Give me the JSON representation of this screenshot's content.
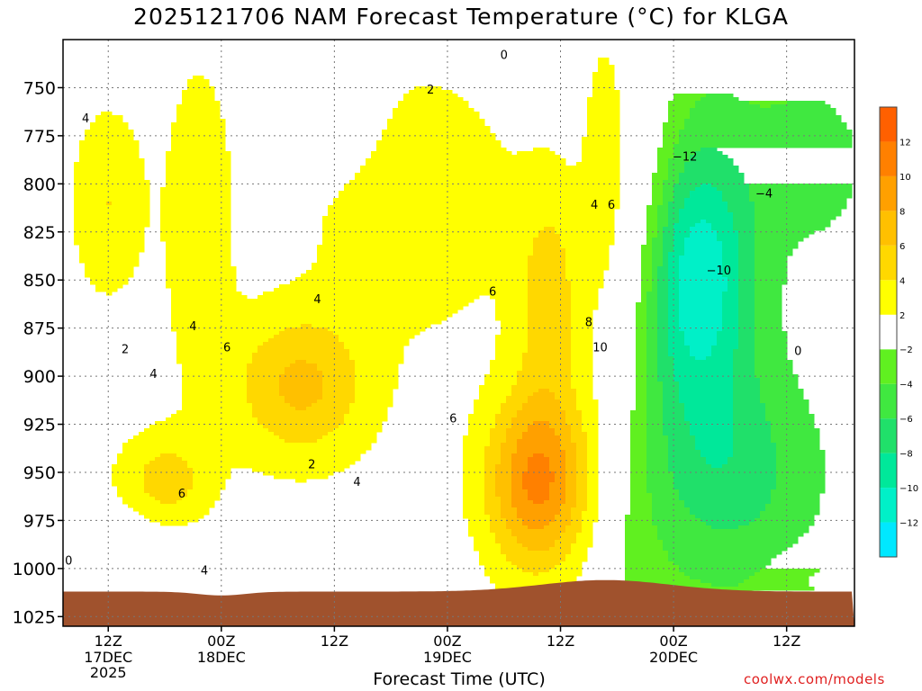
{
  "chart_data": {
    "type": "heatmap",
    "title": "2025121706 NAM Forecast Temperature (°C) for KLGA",
    "xlabel": "Forecast Time (UTC)",
    "ylabel": "",
    "credit": "coolwx.com/models",
    "x_range_hours": [
      -4,
      66
    ],
    "y_range_hPa": [
      725,
      1030
    ],
    "y_ticks": [
      750,
      775,
      800,
      825,
      850,
      875,
      900,
      925,
      950,
      975,
      1000,
      1025
    ],
    "x_ticks": [
      {
        "hour": 0,
        "label": "12Z",
        "sub": [
          "17DEC",
          "2025"
        ]
      },
      {
        "hour": 10,
        "label": "00Z",
        "sub": [
          "18DEC"
        ]
      },
      {
        "hour": 20,
        "label": "12Z",
        "sub": []
      },
      {
        "hour": 30,
        "label": "00Z",
        "sub": [
          "19DEC"
        ]
      },
      {
        "hour": 40,
        "label": "12Z",
        "sub": []
      },
      {
        "hour": 50,
        "label": "00Z",
        "sub": [
          "20DEC"
        ]
      },
      {
        "hour": 60,
        "label": "12Z",
        "sub": []
      }
    ],
    "colorbar": {
      "bounds": [
        -14,
        -12,
        -10,
        -8,
        -6,
        -4,
        -2,
        2,
        4,
        6,
        8,
        10,
        12,
        14
      ],
      "colors": [
        "#00e8ff",
        "#00f0c8",
        "#00e89a",
        "#20e06a",
        "#40e840",
        "#60f020",
        "#ffffff",
        "#ffff00",
        "#ffd800",
        "#ffc000",
        "#ffa000",
        "#ff8000",
        "#ff6000"
      ],
      "labels": [
        {
          "v": -12,
          "t": "−12"
        },
        {
          "v": -10,
          "t": "−10"
        },
        {
          "v": -8,
          "t": "−8"
        },
        {
          "v": -6,
          "t": "−6"
        },
        {
          "v": -4,
          "t": "−4"
        },
        {
          "v": -2,
          "t": "−2"
        },
        {
          "v": 2,
          "t": "2"
        },
        {
          "v": 4,
          "t": "4"
        },
        {
          "v": 6,
          "t": "6"
        },
        {
          "v": 8,
          "t": "8"
        },
        {
          "v": 10,
          "t": "10"
        },
        {
          "v": 12,
          "t": "12"
        }
      ]
    },
    "contour_labels": [
      {
        "h": 35.0,
        "p": 735,
        "t": "0"
      },
      {
        "h": 28.5,
        "p": 753,
        "t": "2"
      },
      {
        "h": -2.0,
        "p": 768,
        "t": "4"
      },
      {
        "h": 43.0,
        "p": 813,
        "t": "4"
      },
      {
        "h": 44.5,
        "p": 813,
        "t": "6"
      },
      {
        "h": 51.0,
        "p": 788,
        "t": "−12"
      },
      {
        "h": 58.0,
        "p": 807,
        "t": "−4"
      },
      {
        "h": 54.0,
        "p": 847,
        "t": "−10"
      },
      {
        "h": 18.5,
        "p": 862,
        "t": "4"
      },
      {
        "h": 34.0,
        "p": 858,
        "t": "6"
      },
      {
        "h": 42.5,
        "p": 874,
        "t": "8"
      },
      {
        "h": 43.5,
        "p": 887,
        "t": "10"
      },
      {
        "h": 7.5,
        "p": 876,
        "t": "4"
      },
      {
        "h": 10.5,
        "p": 887,
        "t": "6"
      },
      {
        "h": 1.5,
        "p": 888,
        "t": "2"
      },
      {
        "h": 4.0,
        "p": 901,
        "t": "4"
      },
      {
        "h": 30.5,
        "p": 924,
        "t": "6"
      },
      {
        "h": 18.0,
        "p": 948,
        "t": "2"
      },
      {
        "h": 22.0,
        "p": 957,
        "t": "4"
      },
      {
        "h": 6.5,
        "p": 963,
        "t": "6"
      },
      {
        "h": 8.5,
        "p": 1003,
        "t": "4"
      },
      {
        "h": -3.5,
        "p": 998,
        "t": "0"
      },
      {
        "h": 61.0,
        "p": 889,
        "t": "0"
      }
    ]
  }
}
